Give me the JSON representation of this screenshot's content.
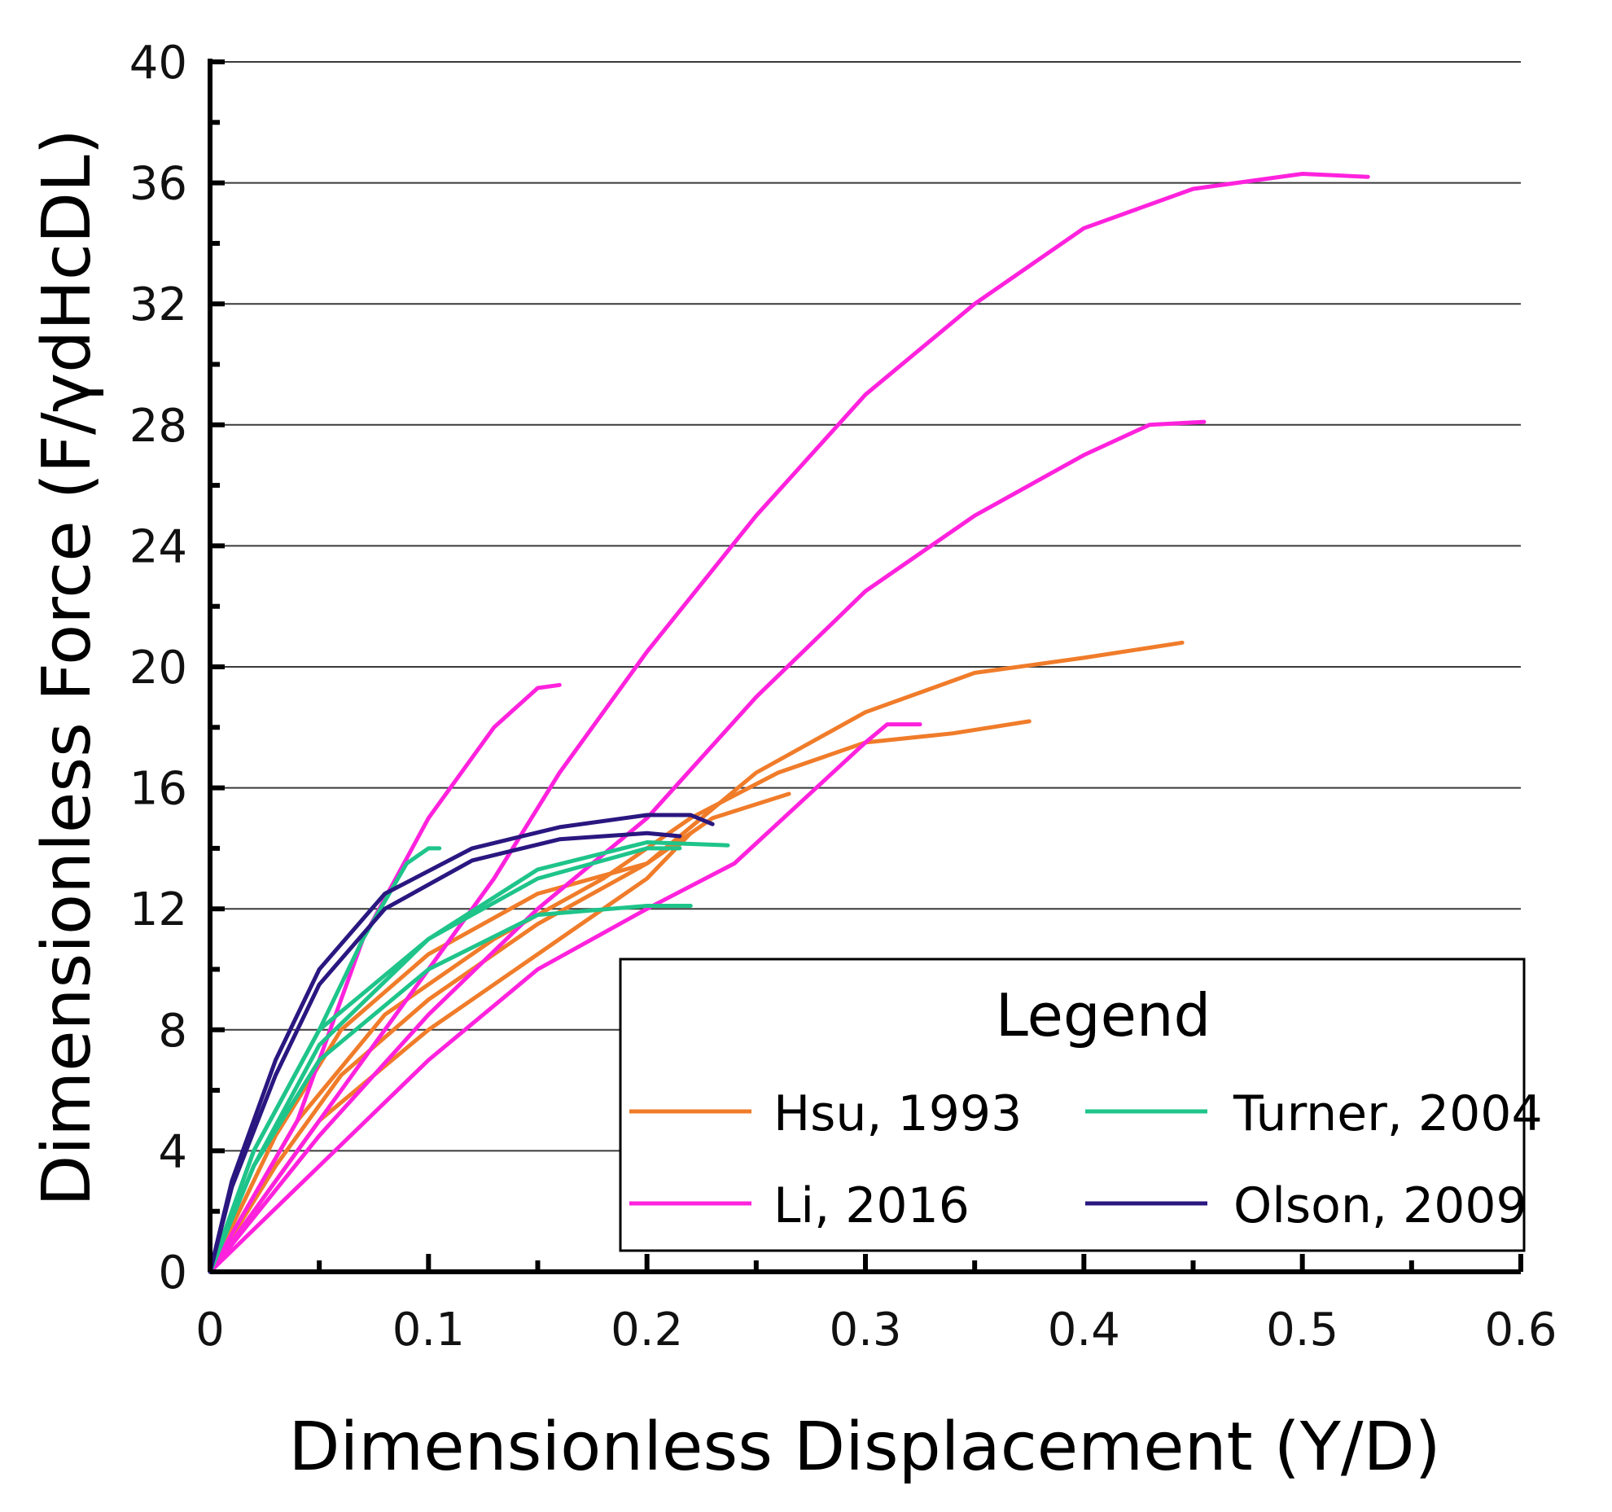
{
  "chart_data": {
    "type": "line",
    "title": "",
    "xlabel": "Dimensionless Displacement (Y/D)",
    "ylabel": "Dimensionless Force (F/γdHcDL)",
    "xlim": [
      0,
      0.6
    ],
    "ylim": [
      0,
      40
    ],
    "xticks": [
      "0",
      "0.1",
      "0.2",
      "0.3",
      "0.4",
      "0.5",
      "0.6"
    ],
    "yticks": [
      "0",
      "4",
      "8",
      "12",
      "16",
      "20",
      "24",
      "28",
      "32",
      "36",
      "40"
    ],
    "grid": "horizontal",
    "legend": {
      "title": "Legend",
      "position": "bottom-right",
      "entries": [
        {
          "label": "Hsu, 1993",
          "color": "#f07c2a"
        },
        {
          "label": "Turner, 2004",
          "color": "#1fc48a"
        },
        {
          "label": "Li, 2016",
          "color": "#ff22dd"
        },
        {
          "label": "Olson, 2009",
          "color": "#2a1780"
        }
      ]
    },
    "series": [
      {
        "name": "Hsu, 1993",
        "color": "#f07c2a",
        "points": [
          [
            0,
            0
          ],
          [
            0.03,
            4.5
          ],
          [
            0.06,
            8
          ],
          [
            0.1,
            10.5
          ],
          [
            0.15,
            12.5
          ],
          [
            0.2,
            13.5
          ],
          [
            0.25,
            16.5
          ],
          [
            0.3,
            18.5
          ],
          [
            0.35,
            19.8
          ],
          [
            0.4,
            20.3
          ],
          [
            0.445,
            20.8
          ]
        ]
      },
      {
        "name": "Hsu, 1993",
        "color": "#f07c2a",
        "points": [
          [
            0,
            0
          ],
          [
            0.04,
            5
          ],
          [
            0.08,
            8.5
          ],
          [
            0.13,
            11
          ],
          [
            0.18,
            13
          ],
          [
            0.22,
            15
          ],
          [
            0.26,
            16.5
          ],
          [
            0.3,
            17.5
          ],
          [
            0.34,
            17.8
          ],
          [
            0.375,
            18.2
          ]
        ]
      },
      {
        "name": "Hsu, 1993",
        "color": "#f07c2a",
        "points": [
          [
            0,
            0
          ],
          [
            0.03,
            3.5
          ],
          [
            0.06,
            6.5
          ],
          [
            0.1,
            9
          ],
          [
            0.15,
            11.5
          ],
          [
            0.2,
            13.5
          ],
          [
            0.23,
            15
          ],
          [
            0.265,
            15.8
          ]
        ]
      },
      {
        "name": "Hsu, 1993",
        "color": "#f07c2a",
        "points": [
          [
            0,
            0
          ],
          [
            0.02,
            2
          ],
          [
            0.05,
            5
          ],
          [
            0.1,
            8
          ],
          [
            0.15,
            10.5
          ],
          [
            0.2,
            13
          ],
          [
            0.22,
            14.5
          ]
        ]
      },
      {
        "name": "Li, 2016",
        "color": "#ff22dd",
        "points": [
          [
            0,
            0
          ],
          [
            0.04,
            5
          ],
          [
            0.07,
            11
          ],
          [
            0.1,
            15
          ],
          [
            0.13,
            18
          ],
          [
            0.15,
            19.3
          ],
          [
            0.16,
            19.4
          ]
        ]
      },
      {
        "name": "Li, 2016",
        "color": "#ff22dd",
        "points": [
          [
            0,
            0
          ],
          [
            0.05,
            5
          ],
          [
            0.1,
            10
          ],
          [
            0.13,
            13
          ],
          [
            0.16,
            16.5
          ],
          [
            0.2,
            20.5
          ],
          [
            0.25,
            25
          ],
          [
            0.3,
            29
          ],
          [
            0.35,
            32
          ],
          [
            0.4,
            34.5
          ],
          [
            0.45,
            35.8
          ],
          [
            0.5,
            36.3
          ],
          [
            0.53,
            36.2
          ]
        ]
      },
      {
        "name": "Li, 2016",
        "color": "#ff22dd",
        "points": [
          [
            0,
            0
          ],
          [
            0.05,
            4.5
          ],
          [
            0.1,
            8.5
          ],
          [
            0.15,
            12
          ],
          [
            0.2,
            15
          ],
          [
            0.25,
            19
          ],
          [
            0.3,
            22.5
          ],
          [
            0.35,
            25
          ],
          [
            0.4,
            27
          ],
          [
            0.43,
            28
          ],
          [
            0.455,
            28.1
          ]
        ]
      },
      {
        "name": "Li, 2016",
        "color": "#ff22dd",
        "points": [
          [
            0,
            0
          ],
          [
            0.05,
            3.5
          ],
          [
            0.1,
            7
          ],
          [
            0.15,
            10
          ],
          [
            0.2,
            12
          ],
          [
            0.24,
            13.5
          ],
          [
            0.27,
            15.5
          ],
          [
            0.3,
            17.5
          ],
          [
            0.31,
            18.1
          ],
          [
            0.325,
            18.1
          ]
        ]
      },
      {
        "name": "Turner, 2004",
        "color": "#1fc48a",
        "points": [
          [
            0,
            0
          ],
          [
            0.02,
            4
          ],
          [
            0.05,
            8
          ],
          [
            0.07,
            11
          ],
          [
            0.09,
            13.5
          ],
          [
            0.1,
            14
          ],
          [
            0.105,
            14
          ]
        ]
      },
      {
        "name": "Turner, 2004",
        "color": "#1fc48a",
        "points": [
          [
            0,
            0
          ],
          [
            0.02,
            4
          ],
          [
            0.05,
            8
          ],
          [
            0.1,
            11
          ],
          [
            0.15,
            13
          ],
          [
            0.2,
            14
          ],
          [
            0.215,
            14
          ]
        ]
      },
      {
        "name": "Turner, 2004",
        "color": "#1fc48a",
        "points": [
          [
            0,
            0
          ],
          [
            0.02,
            3.5
          ],
          [
            0.05,
            7.5
          ],
          [
            0.1,
            11
          ],
          [
            0.15,
            13.3
          ],
          [
            0.2,
            14.2
          ],
          [
            0.237,
            14.1
          ]
        ]
      },
      {
        "name": "Turner, 2004",
        "color": "#1fc48a",
        "points": [
          [
            0,
            0
          ],
          [
            0.02,
            3.5
          ],
          [
            0.05,
            7
          ],
          [
            0.1,
            10
          ],
          [
            0.15,
            11.8
          ],
          [
            0.2,
            12.1
          ],
          [
            0.22,
            12.1
          ]
        ]
      },
      {
        "name": "Olson, 2009",
        "color": "#2a1780",
        "points": [
          [
            0,
            0
          ],
          [
            0.01,
            3
          ],
          [
            0.03,
            7
          ],
          [
            0.05,
            10
          ],
          [
            0.08,
            12.5
          ],
          [
            0.12,
            14
          ],
          [
            0.16,
            14.7
          ],
          [
            0.2,
            15.1
          ],
          [
            0.22,
            15.1
          ],
          [
            0.23,
            14.8
          ]
        ]
      },
      {
        "name": "Olson, 2009",
        "color": "#2a1780",
        "points": [
          [
            0,
            0
          ],
          [
            0.01,
            2.8
          ],
          [
            0.03,
            6.5
          ],
          [
            0.05,
            9.5
          ],
          [
            0.08,
            12
          ],
          [
            0.12,
            13.6
          ],
          [
            0.16,
            14.3
          ],
          [
            0.2,
            14.5
          ],
          [
            0.215,
            14.4
          ]
        ]
      }
    ]
  }
}
